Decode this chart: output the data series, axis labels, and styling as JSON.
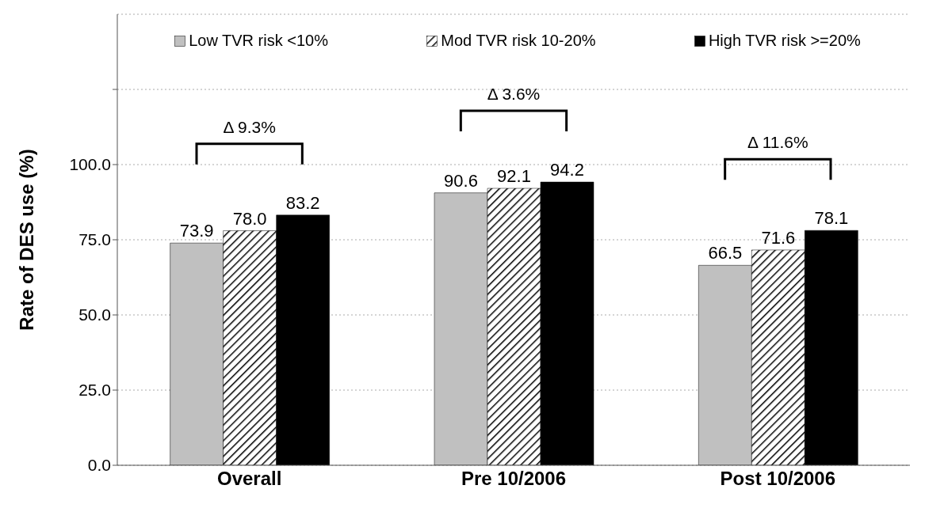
{
  "chart_data": {
    "type": "bar",
    "ylabel": "Rate of DES use (%)",
    "categories": [
      "Overall",
      "Pre 10/2006",
      "Post 10/2006"
    ],
    "series": [
      {
        "name": "Low TVR risk <10%",
        "color": "#c0c0c0",
        "values": [
          73.9,
          90.6,
          66.5
        ],
        "value_labels": [
          "73.9",
          "90.6",
          "66.5"
        ]
      },
      {
        "name": "Mod TVR risk 10-20%",
        "color": "#000000",
        "values": [
          78.0,
          92.1,
          71.6
        ],
        "value_labels": [
          "78.0",
          "92.1",
          "71.6"
        ]
      },
      {
        "name": "High TVR risk >=20%",
        "color": "#000000",
        "values": [
          83.2,
          94.2,
          78.1
        ],
        "value_labels": [
          "83.2",
          "94.2",
          "78.1"
        ]
      }
    ],
    "ylim": [
      0,
      150
    ],
    "yticks": [
      {
        "value": 0,
        "label": "0.0"
      },
      {
        "value": 25,
        "label": "25.0"
      },
      {
        "value": 50,
        "label": "50.0"
      },
      {
        "value": 75,
        "label": "75.0"
      },
      {
        "value": 100,
        "label": "100.0"
      },
      {
        "value": 125,
        "label": null
      }
    ],
    "grid": "y",
    "legend": "top",
    "annotations": [
      "Δ 9.3%",
      "Δ 3.6%",
      "Δ 11.6%"
    ]
  }
}
